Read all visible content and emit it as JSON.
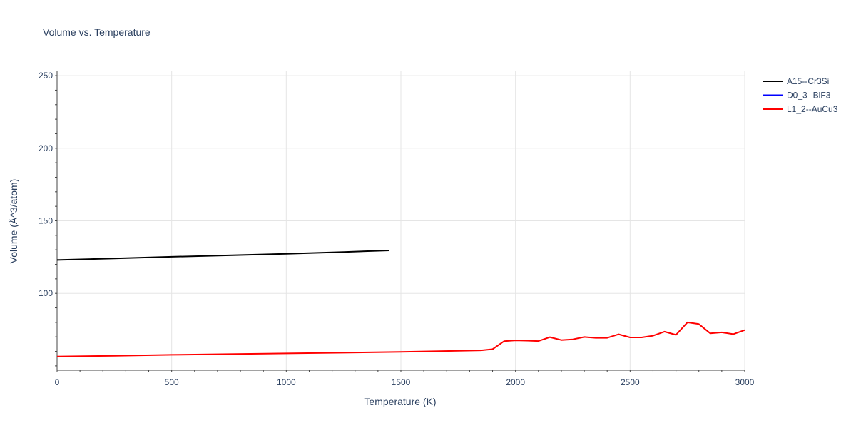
{
  "chart_data": {
    "type": "line",
    "title": "Volume vs. Temperature",
    "xlabel": "Temperature (K)",
    "ylabel": "Volume (Å^3/atom)",
    "xlim": [
      0,
      3000
    ],
    "ylim": [
      47,
      253
    ],
    "xticks": [
      0,
      500,
      1000,
      1500,
      2000,
      2500,
      3000
    ],
    "xtick_labels": [
      "0",
      "500",
      "1000",
      "1500",
      "2000",
      "2500",
      "3000"
    ],
    "yticks": [
      100,
      150,
      200,
      250
    ],
    "ytick_labels": [
      "100",
      "150",
      "200",
      "250"
    ],
    "grid": true,
    "legend_position": "top-right",
    "series": [
      {
        "name": "A15--Cr3Si",
        "color": "#000000",
        "x": [
          0,
          250,
          500,
          750,
          1000,
          1250,
          1450
        ],
        "y": [
          123.0,
          124.1,
          125.2,
          126.2,
          127.3,
          128.5,
          129.6
        ]
      },
      {
        "name": "D0_3--BiF3",
        "color": "#0000ff",
        "x": [],
        "y": []
      },
      {
        "name": "L1_2--AuCu3",
        "color": "#ff0000",
        "x": [
          0,
          250,
          500,
          750,
          1000,
          1250,
          1500,
          1750,
          1850,
          1900,
          1950,
          2000,
          2050,
          2100,
          2150,
          2200,
          2250,
          2300,
          2350,
          2400,
          2450,
          2500,
          2550,
          2600,
          2650,
          2700,
          2750,
          2800,
          2850,
          2900,
          2950,
          3000
        ],
        "y": [
          56.5,
          57.0,
          57.6,
          58.1,
          58.6,
          59.1,
          59.7,
          60.4,
          60.7,
          61.5,
          67.0,
          67.6,
          67.4,
          67.1,
          69.8,
          67.8,
          68.3,
          69.9,
          69.3,
          69.3,
          71.8,
          69.6,
          69.6,
          70.8,
          73.6,
          71.4,
          80.0,
          78.8,
          72.4,
          73.1,
          71.9,
          74.7
        ]
      }
    ]
  }
}
